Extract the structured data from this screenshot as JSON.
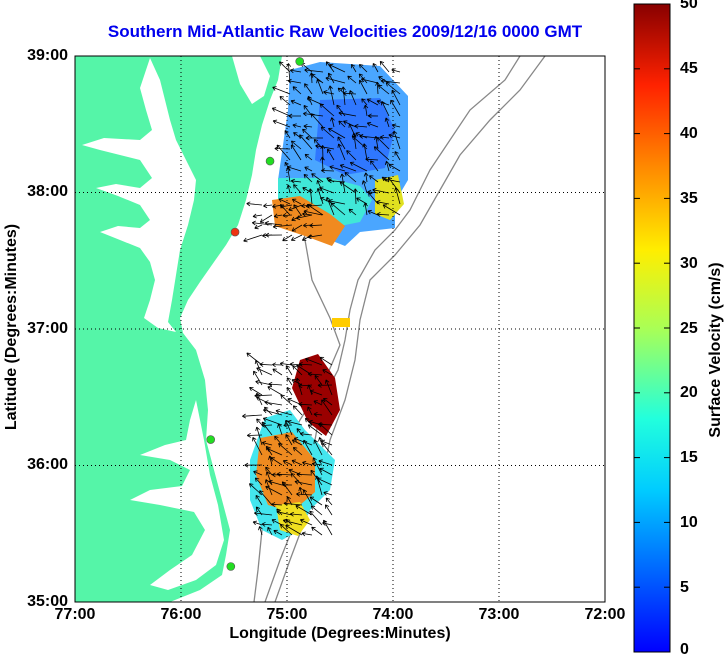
{
  "title": "Southern Mid-Atlantic Raw Velocities 2009/12/16 0000 GMT",
  "xaxis": {
    "label": "Longitude (Degrees:Minutes)",
    "ticks": [
      "77:00",
      "76:00",
      "75:00",
      "74:00",
      "73:00",
      "72:00"
    ]
  },
  "yaxis": {
    "label": "Latitude (Degrees:Minutes)",
    "ticks": [
      "39:00",
      "38:00",
      "37:00",
      "36:00",
      "35:00"
    ]
  },
  "colorbar": {
    "label": "Surface Velocity (cm/s)",
    "ticks": [
      "50",
      "45",
      "40",
      "35",
      "30",
      "25",
      "20",
      "15",
      "10",
      "5",
      "0"
    ],
    "min": 0,
    "max": 50,
    "colormap": "jet"
  },
  "colors": {
    "land": "#55f5a8",
    "title": "#0000ee",
    "station_active": "#22dd22",
    "station_inactive": "#ee3311",
    "bathymetry": "#888888"
  },
  "map": {
    "lon_range": [
      -77,
      -72
    ],
    "lat_range": [
      35,
      39
    ],
    "grid": "dotted",
    "stations": [
      {
        "lon": -74.88,
        "lat": 38.96,
        "status": "active"
      },
      {
        "lon": -75.16,
        "lat": 38.23,
        "status": "active"
      },
      {
        "lon": -75.49,
        "lat": 37.71,
        "status": "inactive"
      },
      {
        "lon": -75.72,
        "lat": 36.19,
        "status": "active"
      },
      {
        "lon": -75.53,
        "lat": 35.26,
        "status": "active"
      }
    ]
  }
}
